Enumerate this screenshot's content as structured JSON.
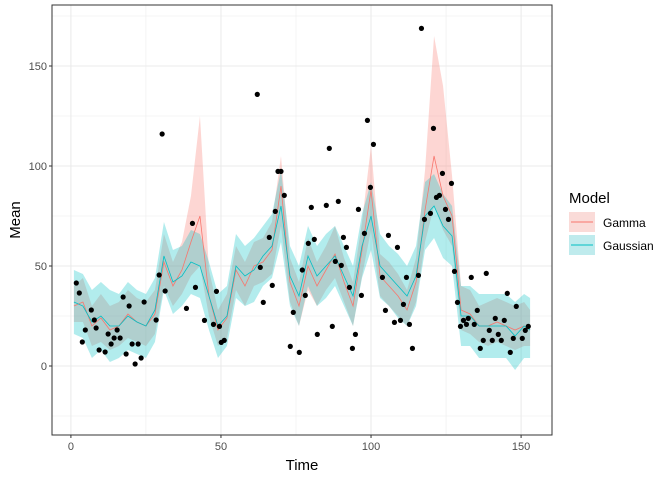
{
  "chart_data": {
    "type": "line",
    "xlabel": "Time",
    "ylabel": "Mean",
    "xlim": [
      -6.3,
      160.3
    ],
    "ylim": [
      -34.5,
      180.5
    ],
    "xticks": [
      0,
      50,
      100,
      150
    ],
    "yticks": [
      0,
      50,
      100,
      150
    ],
    "grid": true,
    "legend": {
      "title": "Model",
      "placement": "right"
    },
    "observed": {
      "x": [
        1.8,
        2.8,
        3.8,
        4.8,
        6.8,
        7.8,
        8.4,
        9.4,
        11.4,
        12.4,
        13.4,
        14.4,
        15.4,
        16.4,
        17.4,
        18.4,
        19.4,
        20.4,
        21.4,
        22.4,
        23.4,
        24.4,
        28.4,
        29.4,
        30.4,
        31.4,
        38.5,
        40.5,
        41.5,
        44.5,
        47.5,
        48.5,
        49.5,
        50.1,
        51.1,
        62.1,
        63.1,
        64.1,
        66.1,
        67.1,
        68.1,
        69,
        70,
        71.1,
        73.1,
        74.1,
        76.1,
        77.1,
        78.1,
        79.1,
        80.1,
        81.1,
        82.1,
        85.1,
        86.1,
        87.1,
        88.1,
        89.1,
        90.1,
        90.8,
        91.8,
        92.8,
        93.8,
        94.8,
        95.8,
        96.8,
        97.8,
        98.8,
        99.8,
        100.8,
        103.8,
        104.8,
        105.8,
        107.8,
        108.8,
        109.8,
        110.8,
        111.8,
        112.8,
        113.8,
        115.8,
        116.8,
        117.8,
        119.8,
        120.8,
        121.8,
        122.8,
        123.8,
        124.8,
        125.8,
        126.8,
        127.8,
        128.8,
        129.8,
        130.8,
        131.8,
        132.4,
        133.4,
        134.4,
        135.4,
        136.4,
        137.4,
        138.4,
        139.4,
        140.4,
        141.4,
        142.4,
        143.4,
        144.4,
        145.4,
        146.4,
        147.4,
        148.4,
        150.4,
        151.4,
        152.4
      ],
      "y": [
        41.5,
        36.5,
        12,
        18,
        28,
        23,
        19,
        8,
        7,
        16,
        11,
        14,
        18,
        14,
        34.5,
        6,
        30,
        11,
        1,
        11,
        4,
        32,
        23,
        45.5,
        116,
        37.5,
        28.8,
        71.3,
        39.3,
        22.8,
        20.8,
        37.3,
        19.8,
        11.8,
        12.8,
        135.8,
        49.3,
        31.8,
        64.3,
        40.3,
        77.3,
        97.3,
        97.3,
        85.3,
        9.8,
        26.8,
        6.8,
        48,
        35.3,
        61.3,
        79.3,
        63.3,
        15.8,
        80.3,
        108.8,
        19.8,
        52.3,
        82.3,
        50.3,
        64.3,
        59.3,
        39.3,
        8.8,
        15.8,
        78.3,
        35.3,
        66.3,
        122.8,
        89.3,
        110.8,
        44.3,
        27.8,
        65.3,
        21.8,
        59.3,
        22.8,
        30.8,
        44.3,
        20.8,
        8.8,
        45.3,
        168.8,
        73.3,
        76.3,
        118.8,
        84.3,
        85.3,
        96.3,
        78.3,
        73.3,
        91.3,
        47.3,
        31.8,
        19.8,
        22.8,
        20.8,
        23.8,
        44.3,
        20.8,
        27.8,
        8.8,
        12.8,
        46.3,
        17.8,
        12.8,
        23.8,
        15.8,
        12.8,
        22.8,
        36.3,
        6.8,
        13.8,
        29.8,
        13.8,
        17.8,
        19.8
      ]
    },
    "x": [
      1,
      4,
      7,
      10,
      13,
      16,
      19,
      22,
      25,
      28,
      31,
      34,
      37,
      40,
      43,
      46,
      49,
      52,
      55,
      58,
      61,
      64,
      67,
      70,
      73,
      76,
      79,
      82,
      85,
      88,
      91,
      94,
      97,
      100,
      103,
      106,
      109,
      112,
      115,
      118,
      121,
      124,
      127,
      130,
      133,
      136,
      139,
      142,
      145,
      148,
      151,
      153
    ],
    "series": [
      {
        "name": "Gamma",
        "color": "#F8766D",
        "band_color": "#FADBD8",
        "mean": [
          30,
          32,
          20,
          24,
          18,
          20,
          26,
          22,
          20,
          26,
          52,
          40,
          48,
          62,
          75,
          35,
          18,
          24,
          48,
          40,
          50,
          52,
          58,
          90,
          42,
          30,
          50,
          40,
          48,
          56,
          42,
          30,
          58,
          88,
          45,
          40,
          35,
          28,
          42,
          78,
          105,
          85,
          75,
          28,
          26,
          20,
          20,
          22,
          20,
          18,
          20,
          18
        ],
        "lower": [
          22,
          22,
          10,
          12,
          8,
          10,
          14,
          12,
          10,
          16,
          40,
          30,
          36,
          45,
          50,
          25,
          10,
          14,
          38,
          30,
          40,
          42,
          46,
          70,
          32,
          20,
          38,
          30,
          38,
          44,
          32,
          20,
          45,
          68,
          35,
          30,
          25,
          20,
          32,
          62,
          80,
          68,
          60,
          18,
          16,
          12,
          10,
          12,
          10,
          8,
          10,
          10
        ],
        "upper": [
          40,
          44,
          30,
          36,
          30,
          32,
          38,
          34,
          32,
          38,
          66,
          52,
          62,
          85,
          125,
          48,
          28,
          36,
          60,
          52,
          62,
          64,
          72,
          105,
          54,
          42,
          64,
          52,
          60,
          70,
          54,
          42,
          72,
          110,
          56,
          52,
          46,
          38,
          54,
          98,
          165,
          140,
          95,
          40,
          38,
          30,
          32,
          34,
          32,
          30,
          32,
          28
        ]
      },
      {
        "name": "Gaussian",
        "color": "#00BFC4",
        "band_color": "#BFEBED",
        "mean": [
          32,
          30,
          22,
          25,
          20,
          20,
          25,
          22,
          20,
          28,
          55,
          42,
          45,
          52,
          50,
          35,
          20,
          25,
          50,
          45,
          48,
          55,
          60,
          80,
          45,
          35,
          55,
          45,
          50,
          55,
          45,
          35,
          60,
          75,
          50,
          45,
          40,
          35,
          45,
          75,
          80,
          70,
          65,
          25,
          25,
          20,
          20,
          20,
          20,
          15,
          20,
          18
        ],
        "lower": [
          16,
          14,
          4,
          8,
          2,
          4,
          8,
          6,
          4,
          12,
          38,
          26,
          30,
          36,
          34,
          18,
          4,
          10,
          34,
          30,
          32,
          40,
          44,
          62,
          30,
          20,
          40,
          30,
          34,
          40,
          30,
          20,
          44,
          58,
          34,
          30,
          24,
          20,
          30,
          58,
          64,
          54,
          50,
          10,
          10,
          4,
          4,
          4,
          4,
          -2,
          4,
          4
        ],
        "upper": [
          48,
          46,
          38,
          42,
          38,
          36,
          42,
          38,
          36,
          44,
          72,
          58,
          60,
          68,
          66,
          52,
          36,
          40,
          66,
          60,
          64,
          70,
          76,
          98,
          60,
          50,
          70,
          60,
          66,
          70,
          60,
          50,
          76,
          92,
          66,
          60,
          56,
          50,
          60,
          92,
          96,
          86,
          80,
          40,
          40,
          36,
          36,
          36,
          36,
          32,
          36,
          34
        ]
      }
    ]
  }
}
